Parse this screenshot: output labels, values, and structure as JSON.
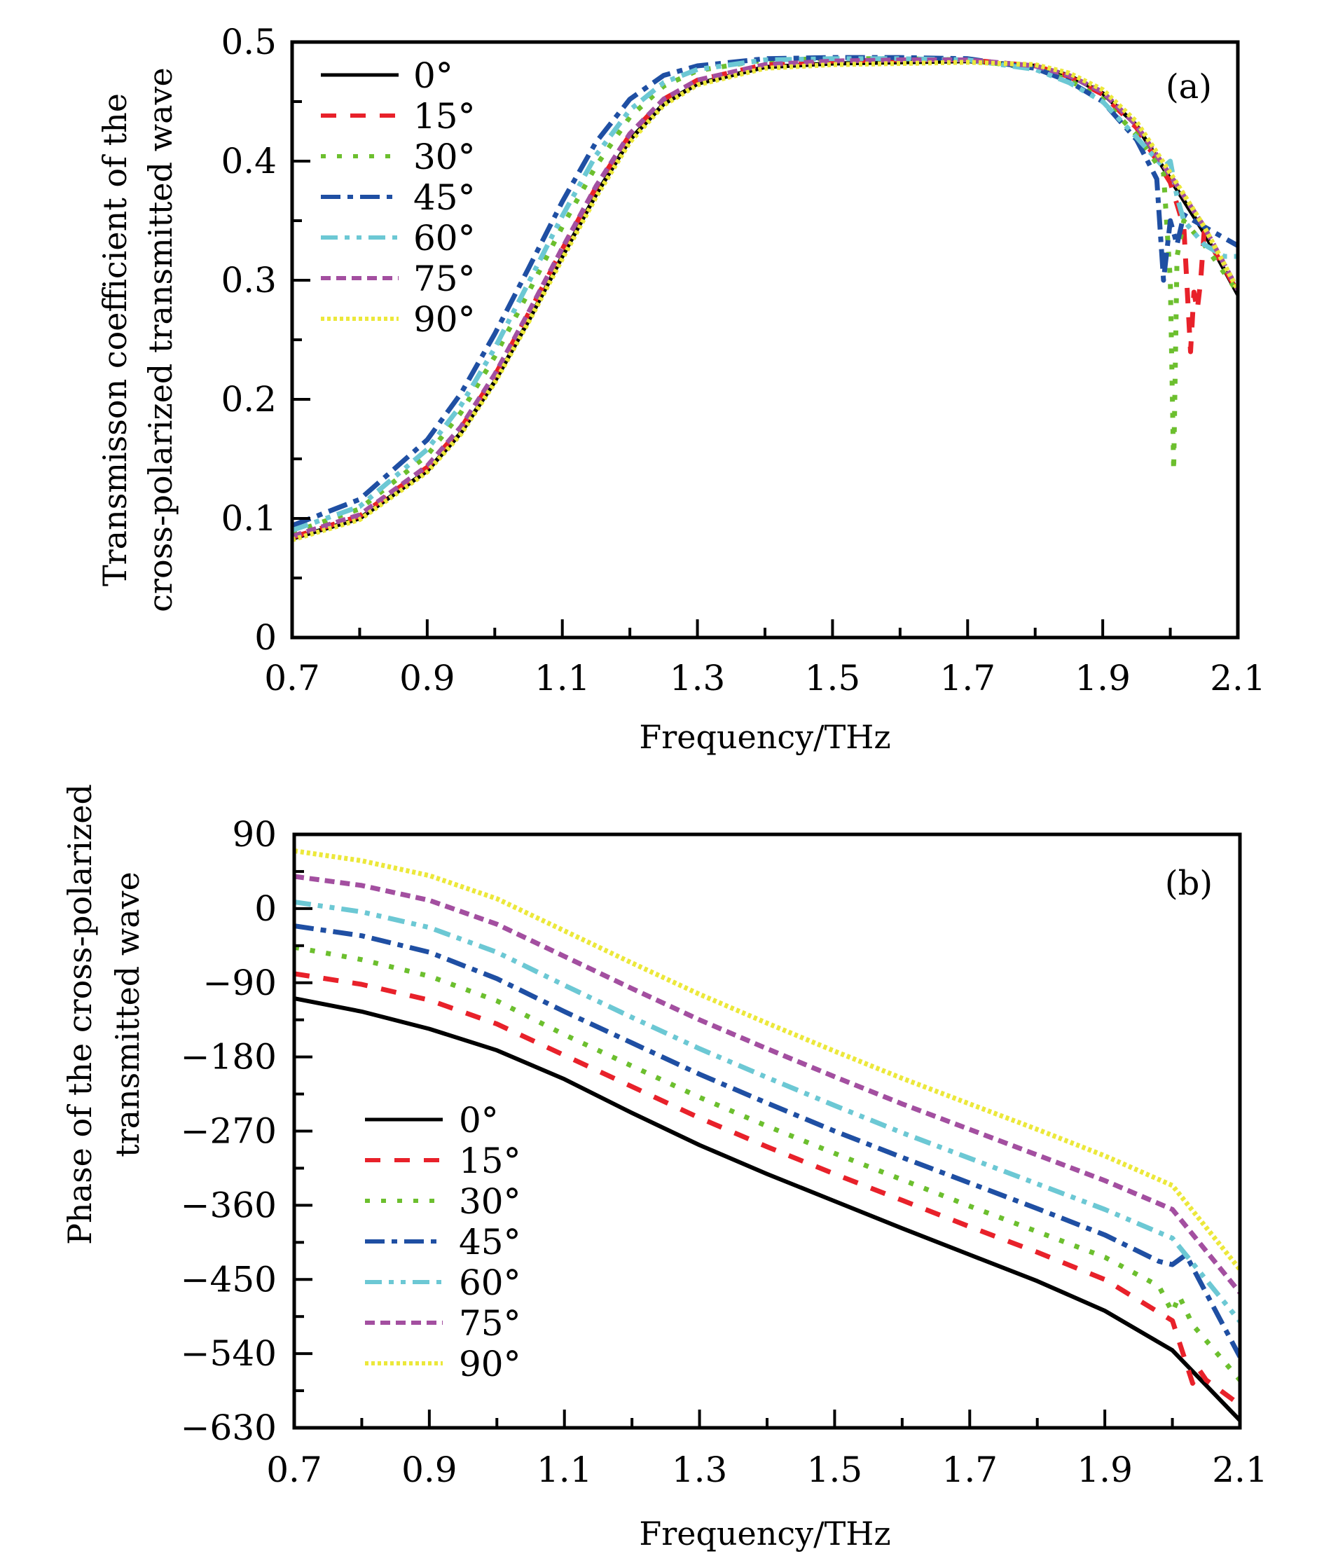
{
  "chart_data": [
    {
      "type": "line",
      "panel_label": "(a)",
      "title": "",
      "xlabel": "Frequency/THz",
      "ylabel_lines": [
        "Transmisson coefficient of the",
        "cross-polarized transmitted wave"
      ],
      "xlim": [
        0.7,
        2.1
      ],
      "ylim": [
        0,
        0.5
      ],
      "xticks": [
        0.7,
        0.9,
        1.1,
        1.3,
        1.5,
        1.7,
        1.9,
        2.1
      ],
      "xtick_labels": [
        "0.7",
        "0.9",
        "1.1",
        "1.3",
        "1.5",
        "1.7",
        "1.9",
        "2.1"
      ],
      "yticks": [
        0,
        0.1,
        0.2,
        0.3,
        0.4,
        0.5
      ],
      "ytick_labels": [
        "0",
        "0.1",
        "0.2",
        "0.3",
        "0.4",
        "0.5"
      ],
      "grid": false,
      "legend_position": "top-left",
      "series": [
        {
          "name": "0°",
          "color": "#000000",
          "style": "solid",
          "x": [
            0.7,
            0.8,
            0.9,
            0.95,
            1.0,
            1.05,
            1.1,
            1.15,
            1.2,
            1.25,
            1.3,
            1.4,
            1.5,
            1.6,
            1.7,
            1.8,
            1.85,
            1.9,
            1.95,
            2.0,
            2.05,
            2.1
          ],
          "y": [
            0.083,
            0.1,
            0.14,
            0.172,
            0.215,
            0.266,
            0.32,
            0.372,
            0.418,
            0.448,
            0.465,
            0.479,
            0.482,
            0.483,
            0.484,
            0.48,
            0.472,
            0.457,
            0.43,
            0.385,
            0.34,
            0.288
          ]
        },
        {
          "name": "15°",
          "color": "#e8212a",
          "style": "dashed",
          "x": [
            0.7,
            0.8,
            0.9,
            0.95,
            1.0,
            1.05,
            1.1,
            1.15,
            1.2,
            1.25,
            1.3,
            1.4,
            1.5,
            1.6,
            1.7,
            1.8,
            1.85,
            1.9,
            1.95,
            2.0,
            2.02,
            2.03,
            2.035,
            2.04,
            2.045,
            2.05,
            2.1
          ],
          "y": [
            0.084,
            0.102,
            0.143,
            0.176,
            0.22,
            0.272,
            0.326,
            0.378,
            0.422,
            0.452,
            0.468,
            0.481,
            0.484,
            0.485,
            0.485,
            0.48,
            0.471,
            0.456,
            0.428,
            0.382,
            0.345,
            0.24,
            0.29,
            0.275,
            0.3,
            0.34,
            0.29
          ]
        },
        {
          "name": "30°",
          "color": "#6cbf2e",
          "style": "dotted",
          "x": [
            0.7,
            0.8,
            0.9,
            0.95,
            1.0,
            1.05,
            1.1,
            1.15,
            1.2,
            1.25,
            1.3,
            1.4,
            1.5,
            1.6,
            1.7,
            1.8,
            1.85,
            1.9,
            1.95,
            1.99,
            2.0,
            2.005,
            2.01,
            2.02,
            2.05,
            2.1
          ],
          "y": [
            0.088,
            0.108,
            0.153,
            0.189,
            0.236,
            0.29,
            0.345,
            0.396,
            0.437,
            0.463,
            0.476,
            0.485,
            0.486,
            0.486,
            0.485,
            0.478,
            0.468,
            0.452,
            0.422,
            0.39,
            0.3,
            0.14,
            0.32,
            0.35,
            0.33,
            0.29
          ]
        },
        {
          "name": "45°",
          "color": "#1f4fa3",
          "style": "dashdot",
          "x": [
            0.7,
            0.8,
            0.9,
            0.95,
            1.0,
            1.05,
            1.1,
            1.15,
            1.2,
            1.25,
            1.3,
            1.4,
            1.5,
            1.6,
            1.7,
            1.8,
            1.85,
            1.9,
            1.95,
            1.98,
            1.99,
            2.0,
            2.01,
            2.02,
            2.05,
            2.1
          ],
          "y": [
            0.094,
            0.116,
            0.166,
            0.205,
            0.255,
            0.31,
            0.366,
            0.416,
            0.452,
            0.472,
            0.48,
            0.486,
            0.487,
            0.487,
            0.486,
            0.478,
            0.467,
            0.45,
            0.418,
            0.385,
            0.3,
            0.35,
            0.33,
            0.355,
            0.345,
            0.329
          ]
        },
        {
          "name": "60°",
          "color": "#6cc8d4",
          "style": "dashdotdot",
          "x": [
            0.7,
            0.8,
            0.9,
            0.95,
            1.0,
            1.05,
            1.1,
            1.15,
            1.2,
            1.25,
            1.3,
            1.4,
            1.5,
            1.6,
            1.7,
            1.8,
            1.85,
            1.9,
            1.95,
            1.99,
            2.0,
            2.01,
            2.02,
            2.05,
            2.08,
            2.1
          ],
          "y": [
            0.09,
            0.11,
            0.158,
            0.195,
            0.243,
            0.298,
            0.354,
            0.405,
            0.443,
            0.466,
            0.477,
            0.485,
            0.486,
            0.486,
            0.485,
            0.477,
            0.466,
            0.45,
            0.42,
            0.395,
            0.4,
            0.37,
            0.35,
            0.33,
            0.32,
            0.32
          ]
        },
        {
          "name": "75°",
          "color": "#a34fa0",
          "style": "shortdash",
          "x": [
            0.7,
            0.8,
            0.9,
            0.95,
            1.0,
            1.05,
            1.1,
            1.15,
            1.2,
            1.25,
            1.3,
            1.4,
            1.5,
            1.6,
            1.7,
            1.8,
            1.85,
            1.9,
            1.95,
            2.0,
            2.05,
            2.1
          ],
          "y": [
            0.085,
            0.103,
            0.144,
            0.177,
            0.221,
            0.273,
            0.327,
            0.379,
            0.423,
            0.452,
            0.468,
            0.481,
            0.484,
            0.485,
            0.485,
            0.48,
            0.472,
            0.458,
            0.43,
            0.388,
            0.345,
            0.292
          ]
        },
        {
          "name": "90°",
          "color": "#ece83a",
          "style": "densedot",
          "x": [
            0.7,
            0.8,
            0.9,
            0.95,
            1.0,
            1.05,
            1.1,
            1.15,
            1.2,
            1.25,
            1.3,
            1.4,
            1.5,
            1.6,
            1.7,
            1.8,
            1.85,
            1.9,
            1.95,
            2.0,
            2.05,
            2.1
          ],
          "y": [
            0.082,
            0.099,
            0.139,
            0.171,
            0.214,
            0.265,
            0.318,
            0.37,
            0.416,
            0.447,
            0.464,
            0.478,
            0.481,
            0.482,
            0.483,
            0.481,
            0.474,
            0.46,
            0.433,
            0.39,
            0.345,
            0.292
          ]
        }
      ]
    },
    {
      "type": "line",
      "panel_label": "(b)",
      "title": "",
      "xlabel": "Frequency/THz",
      "ylabel_lines": [
        "Phase of the cross-polarized",
        "transmitted wave"
      ],
      "xlim": [
        0.7,
        2.1
      ],
      "ylim": [
        -630,
        90
      ],
      "xticks": [
        0.7,
        0.9,
        1.1,
        1.3,
        1.5,
        1.7,
        1.9,
        2.1
      ],
      "xtick_labels": [
        "0.7",
        "0.9",
        "1.1",
        "1.3",
        "1.5",
        "1.7",
        "1.9",
        "2.1"
      ],
      "yticks": [
        90,
        0,
        -90,
        -180,
        -270,
        -360,
        -450,
        -540,
        -630
      ],
      "ytick_labels": [
        "90",
        "0",
        "−90",
        "−180",
        "−270",
        "−360",
        "−450",
        "−540",
        "−630"
      ],
      "grid": false,
      "legend_position": "bottom-left",
      "series": [
        {
          "name": "0°",
          "color": "#000000",
          "style": "solid",
          "x": [
            0.7,
            0.8,
            0.9,
            1.0,
            1.1,
            1.2,
            1.3,
            1.4,
            1.5,
            1.6,
            1.7,
            1.8,
            1.9,
            2.0,
            2.1
          ],
          "y": [
            -109,
            -125,
            -146,
            -172,
            -207,
            -248,
            -287,
            -322,
            -355,
            -388,
            -420,
            -452,
            -488,
            -536,
            -621
          ]
        },
        {
          "name": "15°",
          "color": "#e8212a",
          "style": "dashed",
          "x": [
            0.7,
            0.8,
            0.9,
            1.0,
            1.1,
            1.2,
            1.3,
            1.4,
            1.5,
            1.6,
            1.7,
            1.8,
            1.9,
            2.0,
            2.03,
            2.04,
            2.05,
            2.1
          ],
          "y": [
            -79,
            -92,
            -111,
            -140,
            -178,
            -216,
            -254,
            -289,
            -322,
            -354,
            -386,
            -417,
            -450,
            -500,
            -576,
            -560,
            -572,
            -602
          ]
        },
        {
          "name": "30°",
          "color": "#6cbf2e",
          "style": "dotted",
          "x": [
            0.7,
            0.8,
            0.9,
            1.0,
            1.1,
            1.2,
            1.3,
            1.4,
            1.5,
            1.6,
            1.7,
            1.8,
            1.9,
            1.98,
            2.0,
            2.01,
            2.03,
            2.1
          ],
          "y": [
            -47,
            -62,
            -82,
            -112,
            -153,
            -191,
            -229,
            -264,
            -297,
            -329,
            -361,
            -392,
            -423,
            -458,
            -490,
            -470,
            -505,
            -572
          ]
        },
        {
          "name": "45°",
          "color": "#1f4fa3",
          "style": "dashdot",
          "x": [
            0.7,
            0.8,
            0.9,
            1.0,
            1.1,
            1.2,
            1.3,
            1.4,
            1.5,
            1.6,
            1.7,
            1.8,
            1.9,
            1.98,
            2.0,
            2.02,
            2.1
          ],
          "y": [
            -21,
            -33,
            -53,
            -85,
            -125,
            -163,
            -201,
            -236,
            -270,
            -302,
            -333,
            -364,
            -396,
            -428,
            -432,
            -420,
            -544
          ]
        },
        {
          "name": "60°",
          "color": "#6cc8d4",
          "style": "dashdotdot",
          "x": [
            0.7,
            0.8,
            0.9,
            1.0,
            1.1,
            1.2,
            1.3,
            1.4,
            1.5,
            1.6,
            1.7,
            1.8,
            1.9,
            2.0,
            2.1
          ],
          "y": [
            8,
            -4,
            -23,
            -53,
            -93,
            -132,
            -170,
            -205,
            -239,
            -272,
            -303,
            -334,
            -365,
            -400,
            -501
          ]
        },
        {
          "name": "75°",
          "color": "#a34fa0",
          "style": "shortdash",
          "x": [
            0.7,
            0.8,
            0.9,
            1.0,
            1.1,
            1.2,
            1.3,
            1.4,
            1.5,
            1.6,
            1.7,
            1.8,
            1.9,
            2.0,
            2.1
          ],
          "y": [
            39,
            28,
            10,
            -19,
            -58,
            -97,
            -135,
            -170,
            -204,
            -237,
            -268,
            -299,
            -330,
            -365,
            -466
          ]
        },
        {
          "name": "90°",
          "color": "#ece83a",
          "style": "densedot",
          "x": [
            0.7,
            0.8,
            0.9,
            1.0,
            1.1,
            1.2,
            1.3,
            1.4,
            1.5,
            1.6,
            1.7,
            1.8,
            1.9,
            2.0,
            2.1
          ],
          "y": [
            70,
            58,
            40,
            12,
            -27,
            -66,
            -104,
            -139,
            -173,
            -206,
            -237,
            -268,
            -300,
            -336,
            -438
          ]
        }
      ]
    }
  ]
}
